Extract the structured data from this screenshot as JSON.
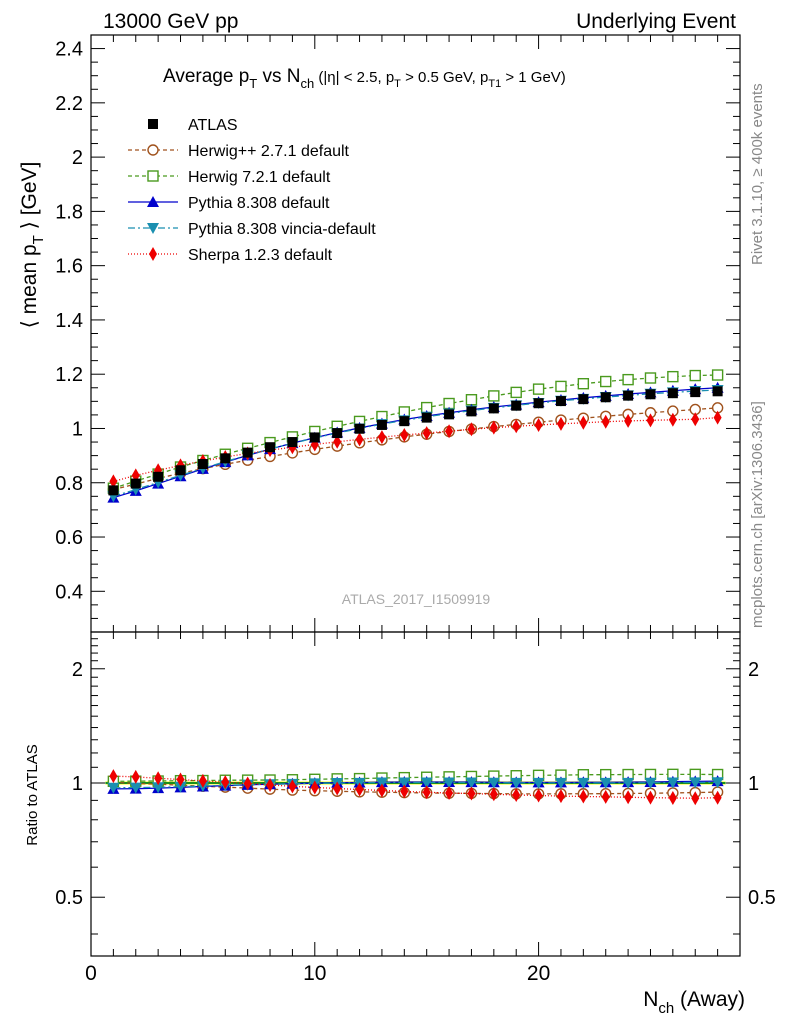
{
  "header": {
    "left": "13000 GeV pp",
    "right": "Underlying Event"
  },
  "title": {
    "main_prefix": "Average p",
    "main_sub1": "T",
    "main_mid": " vs N",
    "main_sub2": "ch",
    "cuts": " (|η| < 2.5, p",
    "cuts_sub1": "T",
    "cuts_mid": " > 0.5 GeV, p",
    "cuts_sub2": "T1",
    "cuts_end": " > 1 GeV)"
  },
  "watermark": "ATLAS_2017_I1509919",
  "side_labels": {
    "rivet": "Rivet 3.1.10, ≥ 400k events",
    "mcplots": "mcplots.cern.ch [arXiv:1306.3436]"
  },
  "axes": {
    "ylabel_main_pre": "⟨ mean p",
    "ylabel_main_sub": "T",
    "ylabel_main_post": " ⟩ [GeV]",
    "ylabel_ratio": "Ratio to ATLAS",
    "xlabel_pre": "N",
    "xlabel_sub": "ch",
    "xlabel_post": " (Away)"
  },
  "legend": [
    {
      "label": "ATLAS"
    },
    {
      "label": "Herwig++ 2.7.1 default"
    },
    {
      "label": "Herwig 7.2.1 default"
    },
    {
      "label": "Pythia 8.308 default"
    },
    {
      "label": "Pythia 8.308 vincia-default"
    },
    {
      "label": "Sherpa 1.2.3 default"
    }
  ],
  "chart_data": {
    "type": "line",
    "x": [
      1,
      2,
      3,
      4,
      5,
      6,
      7,
      8,
      9,
      10,
      11,
      12,
      13,
      14,
      15,
      16,
      17,
      18,
      19,
      20,
      21,
      22,
      23,
      24,
      25,
      26,
      27,
      28
    ],
    "xlim": [
      0,
      29
    ],
    "xticks": [
      0,
      10,
      20
    ],
    "main_ylim": [
      0.25,
      2.45
    ],
    "main_yticks": [
      0.4,
      0.6,
      0.8,
      1,
      1.2,
      1.4,
      1.6,
      1.8,
      2,
      2.2,
      2.4
    ],
    "ratio_ylim": [
      0.35,
      2.5
    ],
    "ratio_yscale": "log",
    "ratio_yticks": [
      0.5,
      1,
      2
    ],
    "grid": false,
    "legend_position": "top-left",
    "series": [
      {
        "name": "ATLAS",
        "marker": "square-filled",
        "color": "#000000",
        "dash": "none",
        "values": [
          0.772,
          0.797,
          0.822,
          0.846,
          0.869,
          0.89,
          0.911,
          0.931,
          0.95,
          0.967,
          0.983,
          0.999,
          1.013,
          1.027,
          1.04,
          1.052,
          1.063,
          1.074,
          1.084,
          1.093,
          1.101,
          1.108,
          1.115,
          1.121,
          1.126,
          1.13,
          1.134,
          1.137
        ]
      },
      {
        "name": "Herwig++ 2.7.1 default",
        "marker": "circle-open",
        "color": "#a0521d",
        "dash": "4,3",
        "values": [
          0.775,
          0.795,
          0.816,
          0.835,
          0.852,
          0.868,
          0.883,
          0.897,
          0.91,
          0.923,
          0.935,
          0.947,
          0.958,
          0.969,
          0.979,
          0.989,
          0.998,
          1.007,
          1.015,
          1.023,
          1.031,
          1.038,
          1.045,
          1.052,
          1.058,
          1.064,
          1.07,
          1.076
        ]
      },
      {
        "name": "Herwig 7.2.1 default",
        "marker": "square-open",
        "color": "#4a9a1e",
        "dash": "4,3",
        "values": [
          0.78,
          0.806,
          0.832,
          0.858,
          0.882,
          0.905,
          0.927,
          0.948,
          0.969,
          0.989,
          1.008,
          1.026,
          1.044,
          1.061,
          1.077,
          1.092,
          1.106,
          1.12,
          1.133,
          1.145,
          1.155,
          1.165,
          1.173,
          1.18,
          1.186,
          1.191,
          1.195,
          1.197
        ]
      },
      {
        "name": "Pythia 8.308 default",
        "marker": "triangle-up",
        "color": "#0000cc",
        "dash": "none",
        "values": [
          0.745,
          0.77,
          0.797,
          0.824,
          0.851,
          0.876,
          0.901,
          0.924,
          0.946,
          0.966,
          0.985,
          1.002,
          1.018,
          1.033,
          1.046,
          1.058,
          1.069,
          1.079,
          1.088,
          1.097,
          1.105,
          1.113,
          1.12,
          1.127,
          1.133,
          1.139,
          1.145,
          1.15
        ]
      },
      {
        "name": "Pythia 8.308 vincia-default",
        "marker": "triangle-down",
        "color": "#1a8fb0",
        "dash": "7,3,2,3",
        "values": [
          0.75,
          0.775,
          0.801,
          0.827,
          0.853,
          0.878,
          0.902,
          0.924,
          0.945,
          0.965,
          0.983,
          1.0,
          1.016,
          1.03,
          1.043,
          1.055,
          1.066,
          1.076,
          1.085,
          1.094,
          1.102,
          1.109,
          1.116,
          1.122,
          1.128,
          1.133,
          1.138,
          1.142
        ]
      },
      {
        "name": "Sherpa 1.2.3 default",
        "marker": "diamond-filled",
        "color": "#ee0000",
        "dash": "1,2",
        "values": [
          0.805,
          0.827,
          0.846,
          0.864,
          0.88,
          0.895,
          0.908,
          0.92,
          0.931,
          0.941,
          0.951,
          0.96,
          0.968,
          0.976,
          0.983,
          0.99,
          0.997,
          1.003,
          1.008,
          1.013,
          1.017,
          1.021,
          1.025,
          1.028,
          1.03,
          1.032,
          1.034,
          1.04
        ]
      }
    ]
  }
}
